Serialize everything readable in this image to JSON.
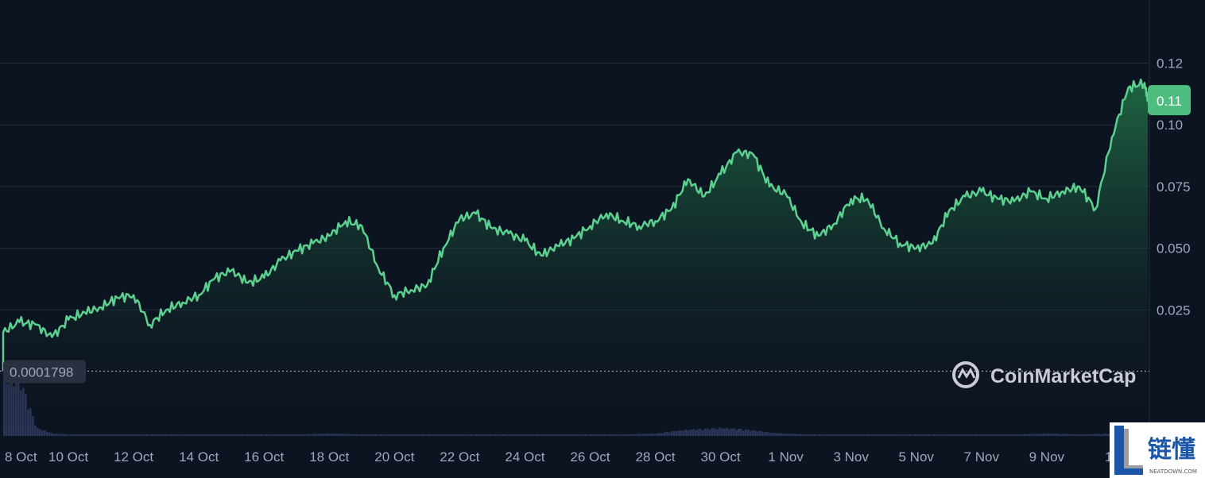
{
  "chart_data": {
    "type": "area",
    "x_tick_labels": [
      "8 Oct",
      "10 Oct",
      "12 Oct",
      "14 Oct",
      "16 Oct",
      "18 Oct",
      "20 Oct",
      "22 Oct",
      "24 Oct",
      "26 Oct",
      "28 Oct",
      "30 Oct",
      "1 Nov",
      "3 Nov",
      "5 Nov",
      "7 Nov",
      "9 Nov",
      "11"
    ],
    "y_tick_labels": [
      "0.025",
      "0.050",
      "0.075",
      "0.10",
      "0.12"
    ],
    "y_ticks": [
      0.025,
      0.05,
      0.075,
      0.1,
      0.125
    ],
    "ylim": [
      0,
      0.15
    ],
    "x_range_days": [
      0,
      35.1
    ],
    "current_price_label": "0.11",
    "start_price_label": "0.0001798",
    "start_price": 0.0001798,
    "grid": true,
    "series": [
      {
        "x": [
          0,
          0.5,
          1,
          1.5,
          2,
          2.5,
          3,
          3.5,
          4,
          4.5,
          5,
          5.5,
          6,
          6.5,
          7,
          7.5,
          8,
          8.5,
          9,
          9.5,
          10,
          10.5,
          11,
          11.5,
          12,
          12.5,
          13,
          13.5,
          14,
          14.5,
          15,
          15.5,
          16,
          16.5,
          17,
          17.5,
          18,
          18.5,
          19,
          19.5,
          20,
          20.5,
          21,
          21.5,
          22,
          22.5,
          23,
          23.5,
          24,
          24.5,
          25,
          25.5,
          26,
          26.5,
          27,
          27.5,
          28,
          28.5,
          29,
          29.5,
          30,
          30.5,
          31,
          31.5,
          32,
          32.5,
          33,
          33.5,
          34,
          34.5,
          35,
          35.1
        ],
        "y": [
          0.016,
          0.02,
          0.019,
          0.014,
          0.021,
          0.024,
          0.026,
          0.03,
          0.031,
          0.019,
          0.025,
          0.028,
          0.031,
          0.038,
          0.041,
          0.036,
          0.038,
          0.045,
          0.049,
          0.052,
          0.055,
          0.061,
          0.059,
          0.042,
          0.031,
          0.033,
          0.035,
          0.05,
          0.062,
          0.064,
          0.058,
          0.056,
          0.053,
          0.047,
          0.051,
          0.054,
          0.059,
          0.064,
          0.061,
          0.059,
          0.061,
          0.066,
          0.078,
          0.071,
          0.08,
          0.089,
          0.088,
          0.075,
          0.072,
          0.06,
          0.055,
          0.06,
          0.07,
          0.07,
          0.058,
          0.052,
          0.05,
          0.052,
          0.065,
          0.071,
          0.073,
          0.07,
          0.069,
          0.073,
          0.07,
          0.073,
          0.075,
          0.066,
          0.095,
          0.115,
          0.117,
          0.11
        ]
      }
    ],
    "volume": {
      "x": [
        0,
        0.5,
        1,
        1.5,
        2,
        3,
        4,
        5,
        6,
        7,
        8,
        9,
        10,
        11,
        12,
        13,
        14,
        15,
        16,
        17,
        18,
        19,
        20,
        20.5,
        21,
        21.5,
        22,
        22.5,
        23,
        23.5,
        24,
        24.5,
        25,
        26,
        27,
        28,
        29,
        30,
        31,
        32,
        33,
        34,
        34.5,
        35,
        35.1
      ],
      "y": [
        0.07,
        0.07,
        0.01,
        0.003,
        0.002,
        0.002,
        0.002,
        0.002,
        0.002,
        0.002,
        0.002,
        0.002,
        0.003,
        0.002,
        0.002,
        0.002,
        0.002,
        0.002,
        0.002,
        0.002,
        0.002,
        0.002,
        0.003,
        0.006,
        0.008,
        0.009,
        0.01,
        0.009,
        0.007,
        0.004,
        0.003,
        0.002,
        0.002,
        0.002,
        0.002,
        0.002,
        0.002,
        0.002,
        0.002,
        0.003,
        0.002,
        0.003,
        0.006,
        0.009,
        0.01
      ]
    }
  },
  "watermark": {
    "brand_name": "CoinMarketCap"
  },
  "corner_logo": {
    "cn_text": "链懂",
    "en_text": "NEATDOWN.COM"
  },
  "colors": {
    "background": "#0d1421",
    "line": "#5cd08e",
    "fill_top": "#1f6b45",
    "grid": "#252d3d",
    "volume": "#2c3658",
    "badge": "#4fbd7f"
  }
}
